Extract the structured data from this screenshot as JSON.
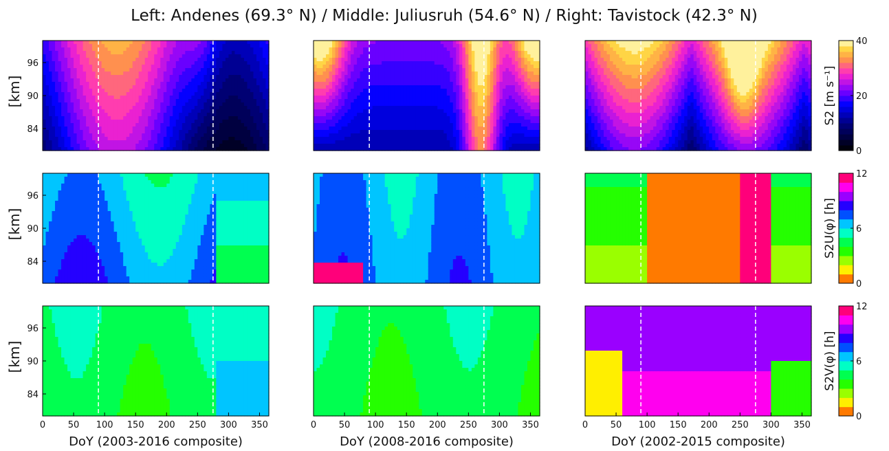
{
  "title": "Left: Andenes (69.3° N) / Middle: Juliusruh (54.6° N) / Right: Tavistock (42.3° N)",
  "ylabel": "[km]",
  "chart_data": {
    "type": "heatmap",
    "x_range": [
      0,
      365
    ],
    "y_range": [
      80,
      100
    ],
    "x_ticks": [
      "0",
      "50",
      "100",
      "150",
      "200",
      "250",
      "300",
      "350"
    ],
    "y_ticks": [
      "84",
      "90",
      "96"
    ],
    "dashed_lines_doy": [
      90,
      275
    ],
    "columns": [
      {
        "station": "Andenes",
        "xlabel": "DoY (2003-2016 composite)"
      },
      {
        "station": "Juliusruh",
        "xlabel": "DoY (2008-2016 composite)"
      },
      {
        "station": "Tavistock",
        "xlabel": "DoY (2002-2015 composite)"
      }
    ],
    "rows": [
      {
        "variable": "S2 amplitude",
        "colorbar_label": "S2 [m s⁻¹]",
        "colorbar_range": [
          0,
          40
        ],
        "colorbar_ticks": [
          "0",
          "20",
          "40"
        ],
        "colormap": "gnuplot2"
      },
      {
        "variable": "S2 zonal phase",
        "colorbar_label": "S2U(φ) [h]",
        "colorbar_range": [
          0,
          12
        ],
        "colorbar_ticks": [
          "0",
          "6",
          "12"
        ],
        "colormap": "hsv"
      },
      {
        "variable": "S2 meridional phase",
        "colorbar_label": "S2V(φ) [h]",
        "colorbar_range": [
          0,
          12
        ],
        "colorbar_ticks": [
          "0",
          "6",
          "12"
        ],
        "colormap": "hsv"
      }
    ]
  }
}
